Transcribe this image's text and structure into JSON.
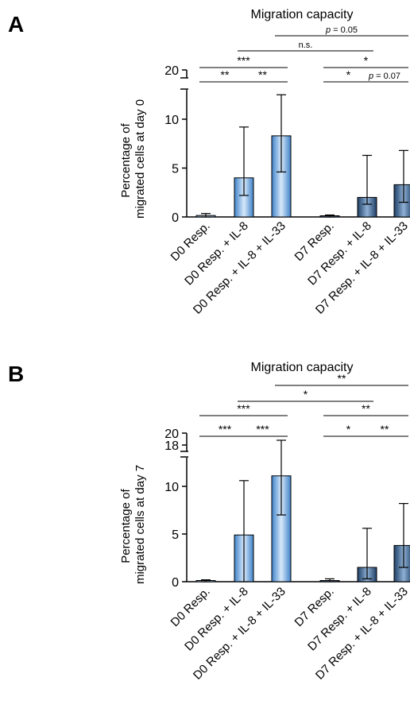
{
  "chart_data": [
    {
      "panel_label": "A",
      "type": "bar",
      "title": "Migration capacity",
      "ylabel_lines": [
        "Percentage of",
        "migrated cells at day 0"
      ],
      "categories": [
        "D0 Resp.",
        "D0 Resp. + IL-8",
        "D0 Resp. + IL-8 + IL-33",
        "D7 Resp.",
        "D7 Resp. + IL-8",
        "D7 Resp. + IL-8 + IL-33"
      ],
      "values": [
        0.15,
        4.0,
        8.3,
        0.1,
        2.0,
        3.3
      ],
      "err_high": [
        0.35,
        9.2,
        12.5,
        0.2,
        6.3,
        6.8
      ],
      "err_low": [
        0.0,
        2.2,
        4.6,
        0.0,
        1.3,
        1.5
      ],
      "bar_colors": [
        "#9ec6ec",
        "#6fa8e0",
        "#6fa8e0",
        "#2d5583",
        "#2d5583",
        "#2d5583"
      ],
      "ylim_lower": [
        0,
        13
      ],
      "upper_segment_value": 20,
      "yticks": [
        0,
        5,
        10
      ],
      "ytick_upper_labels": [
        "20"
      ],
      "significance": [
        {
          "from": 0,
          "to": 1,
          "label": "**",
          "level": 1
        },
        {
          "from": 1,
          "to": 2,
          "label": "**",
          "level": 1
        },
        {
          "from": 3,
          "to": 4,
          "label": "*",
          "level": 1
        },
        {
          "from": 4,
          "to": 5,
          "label": "p = 0.07",
          "level": 1
        },
        {
          "from": 0,
          "to": 2,
          "label": "***",
          "level": 2
        },
        {
          "from": 3,
          "to": 5,
          "label": "*",
          "level": 2
        },
        {
          "from": 1,
          "to": 4,
          "label": "n.s.",
          "level": 3
        },
        {
          "from": 2,
          "to": 5,
          "label": "p = 0.05",
          "level": 4
        }
      ]
    },
    {
      "panel_label": "B",
      "type": "bar",
      "title": "Migration capacity",
      "ylabel_lines": [
        "Percentage of",
        "migrated cells at day 7"
      ],
      "categories": [
        "D0 Resp.",
        "D0 Resp. + IL-8",
        "D0 Resp. + IL-8 + IL-33",
        "D7 Resp.",
        "D7 Resp. + IL-8",
        "D7 Resp. + IL-8 + IL-33"
      ],
      "values": [
        0.1,
        4.9,
        11.1,
        0.05,
        1.5,
        3.8
      ],
      "err_high": [
        0.2,
        10.6,
        18.0,
        0.3,
        5.6,
        8.2
      ],
      "err_low": [
        0.0,
        0.0,
        7.0,
        0.0,
        0.3,
        1.5
      ],
      "bar_colors": [
        "#9ec6ec",
        "#6fa8e0",
        "#6fa8e0",
        "#2d5583",
        "#2d5583",
        "#2d5583"
      ],
      "ylim_lower": [
        0,
        13
      ],
      "upper_segment_value": 20,
      "yticks": [
        0,
        5,
        10
      ],
      "ytick_upper_labels": [
        "18",
        "20"
      ],
      "significance": [
        {
          "from": 0,
          "to": 1,
          "label": "***",
          "level": 1
        },
        {
          "from": 1,
          "to": 2,
          "label": "***",
          "level": 1
        },
        {
          "from": 3,
          "to": 4,
          "label": "*",
          "level": 1
        },
        {
          "from": 4,
          "to": 5,
          "label": "**",
          "level": 1
        },
        {
          "from": 0,
          "to": 2,
          "label": "***",
          "level": 2
        },
        {
          "from": 3,
          "to": 5,
          "label": "**",
          "level": 2
        },
        {
          "from": 1,
          "to": 4,
          "label": "*",
          "level": 3
        },
        {
          "from": 2,
          "to": 5,
          "label": "**",
          "level": 4
        }
      ]
    }
  ]
}
